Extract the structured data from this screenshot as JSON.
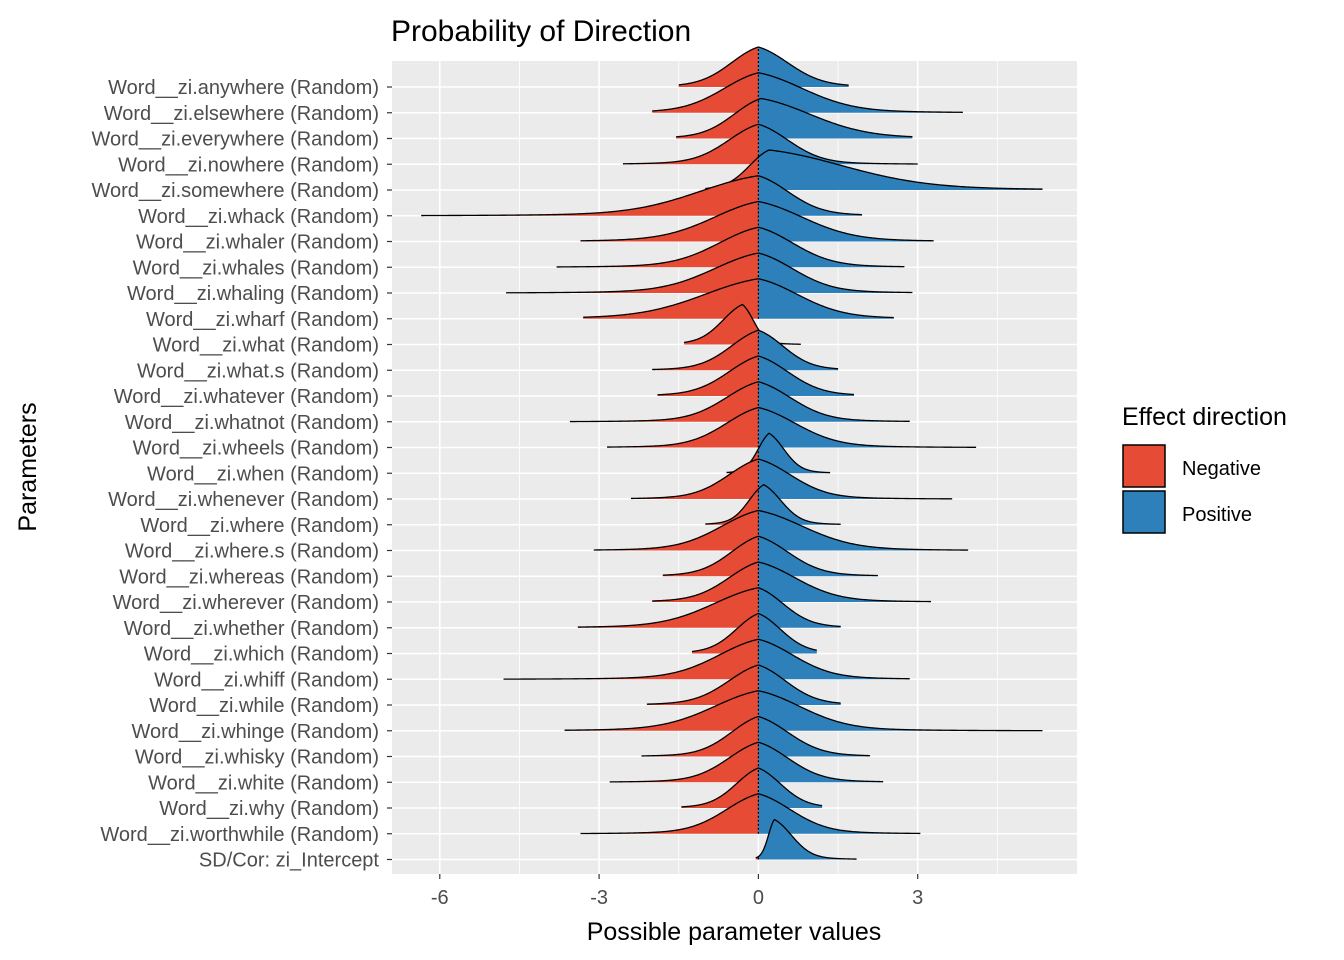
{
  "chart_data": {
    "type": "area",
    "title": "Probability of Direction",
    "xlabel": "Possible parameter values",
    "ylabel": "Parameters",
    "xlim": [
      -6.9,
      6.0
    ],
    "x_ticks": [
      -6,
      -3,
      0,
      3
    ],
    "x_tick_labels": [
      "-6",
      "-3",
      "0",
      "3"
    ],
    "grid": true,
    "legend": {
      "title": "Effect direction",
      "position": "right",
      "entries": [
        {
          "label": "Negative",
          "color": "#E64B35"
        },
        {
          "label": "Positive",
          "color": "#2E80BA"
        }
      ]
    },
    "series_note": "Each parameter is a posterior density ridge; parts below 0 are Negative, above 0 are Positive.",
    "parameters": [
      {
        "label": "Word__zi.anywhere (Random)",
        "mode": 0.0,
        "min": -1.5,
        "max": 1.7,
        "left_spread": 0.55,
        "right_spread": 0.6
      },
      {
        "label": "Word__zi.elsewhere (Random)",
        "mode": 0.0,
        "min": -2.0,
        "max": 3.85,
        "left_spread": 0.7,
        "right_spread": 0.9
      },
      {
        "label": "Word__zi.everywhere (Random)",
        "mode": 0.05,
        "min": -1.55,
        "max": 2.9,
        "left_spread": 0.55,
        "right_spread": 1.0
      },
      {
        "label": "Word__zi.nowhere (Random)",
        "mode": 0.0,
        "min": -2.55,
        "max": 3.0,
        "left_spread": 0.6,
        "right_spread": 0.6
      },
      {
        "label": "Word__zi.somewhere (Random)",
        "mode": 0.2,
        "min": -1.0,
        "max": 5.35,
        "left_spread": 0.4,
        "right_spread": 1.5
      },
      {
        "label": "Word__zi.whack (Random)",
        "mode": 0.0,
        "min": -6.35,
        "max": 1.95,
        "left_spread": 1.2,
        "right_spread": 0.6
      },
      {
        "label": "Word__zi.whaler (Random)",
        "mode": 0.0,
        "min": -3.35,
        "max": 3.3,
        "left_spread": 0.9,
        "right_spread": 0.9
      },
      {
        "label": "Word__zi.whales (Random)",
        "mode": 0.0,
        "min": -3.8,
        "max": 2.75,
        "left_spread": 0.8,
        "right_spread": 0.7
      },
      {
        "label": "Word__zi.whaling (Random)",
        "mode": 0.0,
        "min": -4.75,
        "max": 2.9,
        "left_spread": 0.9,
        "right_spread": 0.7
      },
      {
        "label": "Word__zi.wharf (Random)",
        "mode": 0.0,
        "min": -3.3,
        "max": 2.55,
        "left_spread": 1.1,
        "right_spread": 0.8
      },
      {
        "label": "Word__zi.what (Random)",
        "mode": -0.3,
        "min": -1.4,
        "max": 0.8,
        "left_spread": 0.4,
        "right_spread": 0.22
      },
      {
        "label": "Word__zi.what.s (Random)",
        "mode": 0.0,
        "min": -2.0,
        "max": 1.5,
        "left_spread": 0.55,
        "right_spread": 0.5
      },
      {
        "label": "Word__zi.whatever (Random)",
        "mode": 0.0,
        "min": -1.9,
        "max": 1.8,
        "left_spread": 0.6,
        "right_spread": 0.6
      },
      {
        "label": "Word__zi.whatnot (Random)",
        "mode": 0.0,
        "min": -3.55,
        "max": 2.85,
        "left_spread": 0.65,
        "right_spread": 0.65
      },
      {
        "label": "Word__zi.wheels (Random)",
        "mode": 0.0,
        "min": -2.85,
        "max": 4.1,
        "left_spread": 0.65,
        "right_spread": 0.75
      },
      {
        "label": "Word__zi.when (Random)",
        "mode": 0.2,
        "min": -0.6,
        "max": 1.35,
        "left_spread": 0.22,
        "right_spread": 0.3
      },
      {
        "label": "Word__zi.whenever (Random)",
        "mode": 0.0,
        "min": -2.4,
        "max": 3.65,
        "left_spread": 0.6,
        "right_spread": 0.65
      },
      {
        "label": "Word__zi.where (Random)",
        "mode": 0.1,
        "min": -1.0,
        "max": 1.55,
        "left_spread": 0.3,
        "right_spread": 0.35
      },
      {
        "label": "Word__zi.where.s (Random)",
        "mode": 0.0,
        "min": -3.1,
        "max": 3.95,
        "left_spread": 0.75,
        "right_spread": 0.9
      },
      {
        "label": "Word__zi.whereas (Random)",
        "mode": 0.0,
        "min": -1.8,
        "max": 2.25,
        "left_spread": 0.55,
        "right_spread": 0.6
      },
      {
        "label": "Word__zi.wherever (Random)",
        "mode": 0.0,
        "min": -2.0,
        "max": 3.25,
        "left_spread": 0.6,
        "right_spread": 0.75
      },
      {
        "label": "Word__zi.whether (Random)",
        "mode": 0.0,
        "min": -3.4,
        "max": 1.55,
        "left_spread": 0.9,
        "right_spread": 0.5
      },
      {
        "label": "Word__zi.which (Random)",
        "mode": 0.0,
        "min": -1.25,
        "max": 1.1,
        "left_spread": 0.45,
        "right_spread": 0.45
      },
      {
        "label": "Word__zi.whiff (Random)",
        "mode": 0.0,
        "min": -4.8,
        "max": 2.85,
        "left_spread": 0.8,
        "right_spread": 0.7
      },
      {
        "label": "Word__zi.while (Random)",
        "mode": 0.0,
        "min": -2.1,
        "max": 1.55,
        "left_spread": 0.6,
        "right_spread": 0.55
      },
      {
        "label": "Word__zi.whinge (Random)",
        "mode": 0.0,
        "min": -3.65,
        "max": 5.35,
        "left_spread": 0.9,
        "right_spread": 0.85
      },
      {
        "label": "Word__zi.whisky (Random)",
        "mode": 0.0,
        "min": -2.2,
        "max": 2.1,
        "left_spread": 0.55,
        "right_spread": 0.6
      },
      {
        "label": "Word__zi.white (Random)",
        "mode": 0.0,
        "min": -2.8,
        "max": 2.35,
        "left_spread": 0.6,
        "right_spread": 0.6
      },
      {
        "label": "Word__zi.why (Random)",
        "mode": 0.0,
        "min": -1.45,
        "max": 1.2,
        "left_spread": 0.45,
        "right_spread": 0.45
      },
      {
        "label": "Word__zi.worthwhile (Random)",
        "mode": 0.0,
        "min": -3.35,
        "max": 3.05,
        "left_spread": 0.65,
        "right_spread": 0.65
      },
      {
        "label": "SD/Cor:  zi_Intercept",
        "mode": 0.3,
        "min": -0.05,
        "max": 1.85,
        "left_spread": 0.12,
        "right_spread": 0.35
      }
    ]
  }
}
